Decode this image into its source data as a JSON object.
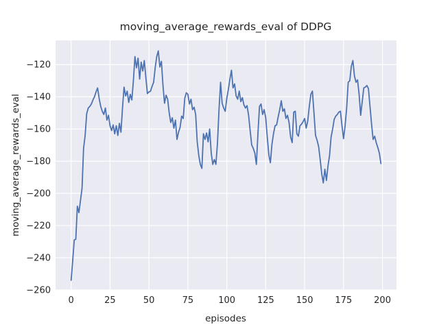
{
  "chart_data": {
    "type": "line",
    "title": "moving_average_rewards_eval of DDPG",
    "xlabel": "episodes",
    "ylabel": "moving_average_rewards_eval",
    "grid": true,
    "legend": "none",
    "xlim": [
      -10,
      209
    ],
    "ylim": [
      -260,
      -105
    ],
    "xticks": [
      0,
      25,
      50,
      75,
      100,
      125,
      150,
      175,
      200
    ],
    "xtick_labels": [
      "0",
      "25",
      "50",
      "75",
      "100",
      "125",
      "150",
      "175",
      "200"
    ],
    "yticks": [
      -120,
      -140,
      -160,
      -180,
      -200,
      -220,
      -240,
      -260
    ],
    "ytick_labels": [
      "−120",
      "−140",
      "−160",
      "−180",
      "−200",
      "−220",
      "−240",
      "−260"
    ],
    "x_start": 0,
    "x_step": 1,
    "series": [
      {
        "name": "moving_average_rewards_eval",
        "color": "#4c72b0",
        "values": [
          -254,
          -242,
          -229,
          -228.5,
          -208,
          -212,
          -204.5,
          -197,
          -172,
          -164,
          -150.5,
          -147,
          -146,
          -144.5,
          -142,
          -140,
          -137,
          -134.5,
          -141,
          -146,
          -149,
          -151,
          -147,
          -154.5,
          -151.5,
          -158,
          -161,
          -157.5,
          -163,
          -158,
          -164,
          -156.5,
          -162,
          -147,
          -134,
          -139.5,
          -136.5,
          -143.5,
          -138.5,
          -142,
          -130,
          -115,
          -122,
          -116,
          -129,
          -118.5,
          -124,
          -117.5,
          -128,
          -138,
          -137,
          -136.5,
          -133.5,
          -131,
          -122,
          -115,
          -111.5,
          -121.5,
          -118,
          -133,
          -144,
          -139,
          -141.5,
          -150,
          -156,
          -153,
          -159.5,
          -154.5,
          -166.5,
          -162,
          -159,
          -152,
          -153.5,
          -141,
          -137.5,
          -138.5,
          -144.5,
          -141.5,
          -148,
          -146.5,
          -151,
          -168,
          -176.5,
          -182,
          -184.5,
          -163,
          -166.5,
          -162.5,
          -168,
          -160,
          -175,
          -182,
          -179,
          -182,
          -169,
          -148,
          -131,
          -144,
          -147,
          -149,
          -141,
          -135.5,
          -129,
          -123.5,
          -134.5,
          -132,
          -139.5,
          -141.5,
          -136.5,
          -143,
          -140.5,
          -145,
          -147,
          -145.5,
          -151.5,
          -161,
          -170,
          -172,
          -175,
          -182,
          -163,
          -146,
          -144.5,
          -151,
          -148,
          -153,
          -165,
          -176,
          -181,
          -169.5,
          -163,
          -158,
          -157.5,
          -152.5,
          -148,
          -142.5,
          -149,
          -147.5,
          -153.5,
          -151.5,
          -156,
          -165,
          -168.5,
          -149.5,
          -149,
          -163,
          -164.5,
          -158,
          -157,
          -155.5,
          -153.5,
          -159.5,
          -155,
          -146,
          -138.5,
          -136.5,
          -150,
          -164,
          -167,
          -171,
          -179,
          -188,
          -193.5,
          -185,
          -192,
          -183,
          -176.5,
          -165,
          -160,
          -154,
          -152,
          -151,
          -149.5,
          -149,
          -158,
          -166,
          -158,
          -147,
          -131,
          -130,
          -121,
          -117.5,
          -127,
          -131,
          -129.5,
          -138.5,
          -151.5,
          -143,
          -134.5,
          -134,
          -133,
          -135,
          -146,
          -157,
          -166.5,
          -164.5,
          -168.5,
          -171.5,
          -175,
          -181.5
        ]
      }
    ],
    "style": {
      "figure_bg": "#ffffff",
      "axes_bg": "#eaeaf2",
      "grid_color": "#ffffff",
      "text_color": "#262626",
      "line_width": 1.8
    }
  }
}
